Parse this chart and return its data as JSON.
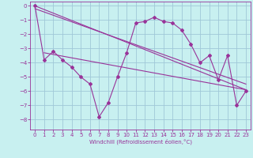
{
  "xlabel": "Windchill (Refroidissement éolien,°C)",
  "background_color": "#c8f0f0",
  "grid_color": "#a0c8d8",
  "line_color": "#993399",
  "xlim": [
    -0.5,
    23.5
  ],
  "ylim": [
    -8.7,
    0.3
  ],
  "yticks": [
    0,
    -1,
    -2,
    -3,
    -4,
    -5,
    -6,
    -7,
    -8
  ],
  "xticks": [
    0,
    1,
    2,
    3,
    4,
    5,
    6,
    7,
    8,
    9,
    10,
    11,
    12,
    13,
    14,
    15,
    16,
    17,
    18,
    19,
    20,
    21,
    22,
    23
  ],
  "series1_x": [
    0,
    1,
    2,
    3,
    4,
    5,
    6,
    7,
    8,
    9,
    10,
    11,
    12,
    13,
    14,
    15,
    16,
    17,
    18,
    19,
    20,
    21,
    22,
    23
  ],
  "series1_y": [
    0.0,
    -3.8,
    -3.2,
    -3.8,
    -4.3,
    -5.0,
    -5.5,
    -7.8,
    -6.8,
    -5.0,
    -3.3,
    -1.2,
    -1.1,
    -0.8,
    -1.1,
    -1.2,
    -1.7,
    -2.7,
    -4.0,
    -3.5,
    -5.2,
    -3.5,
    -7.0,
    -6.0
  ],
  "series2_x": [
    0,
    23
  ],
  "series2_y": [
    0.0,
    -5.9
  ],
  "series3_x": [
    1,
    23
  ],
  "series3_y": [
    -3.3,
    -5.9
  ],
  "series4_x": [
    0,
    23
  ],
  "series4_y": [
    -0.2,
    -5.5
  ],
  "xlabel_fontsize": 5.0,
  "tick_fontsize": 5.0
}
